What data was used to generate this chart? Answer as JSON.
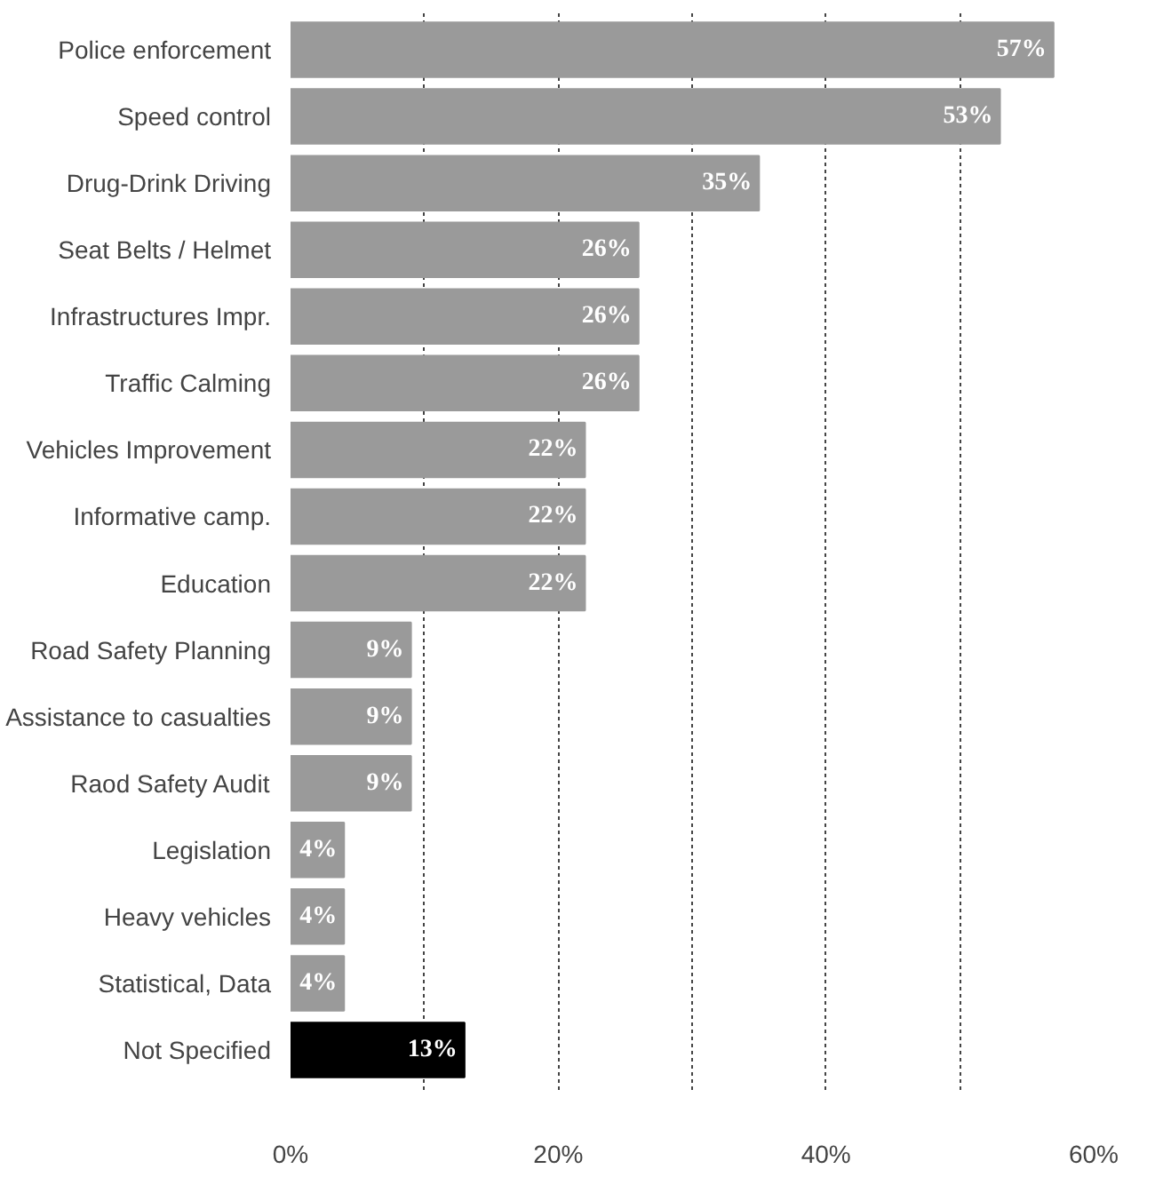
{
  "chart_data": {
    "type": "bar",
    "orientation": "horizontal",
    "categories": [
      "Police enforcement",
      "Speed control",
      "Drug-Drink Driving",
      "Seat Belts / Helmet",
      "Infrastructures Impr.",
      "Traffic Calming",
      "Vehicles Improvement",
      "Informative camp.",
      "Education",
      "Road Safety Planning",
      "Assistance to casualties",
      "Raod Safety Audit",
      "Legislation",
      "Heavy vehicles",
      "Statistical, Data",
      "Not Specified"
    ],
    "values": [
      57,
      53,
      35,
      26,
      26,
      26,
      22,
      22,
      22,
      9,
      9,
      9,
      4,
      4,
      4,
      13
    ],
    "colors": [
      "#9a9a9a",
      "#9a9a9a",
      "#9a9a9a",
      "#9a9a9a",
      "#9a9a9a",
      "#9a9a9a",
      "#9a9a9a",
      "#9a9a9a",
      "#9a9a9a",
      "#9a9a9a",
      "#9a9a9a",
      "#9a9a9a",
      "#9a9a9a",
      "#9a9a9a",
      "#9a9a9a",
      "#000000"
    ],
    "value_labels": [
      "57%",
      "53%",
      "35%",
      "26%",
      "26%",
      "26%",
      "22%",
      "22%",
      "22%",
      "9%",
      "9%",
      "9%",
      "4%",
      "4%",
      "4%",
      "13%"
    ],
    "xlim": [
      0,
      60
    ],
    "xticks": [
      {
        "value": 0,
        "label": "0%"
      },
      {
        "value": 10,
        "label": null
      },
      {
        "value": 20,
        "label": "20%"
      },
      {
        "value": 30,
        "label": null
      },
      {
        "value": 40,
        "label": "40%"
      },
      {
        "value": 50,
        "label": null
      },
      {
        "value": 60,
        "label": "60%"
      }
    ],
    "grid": "x"
  }
}
